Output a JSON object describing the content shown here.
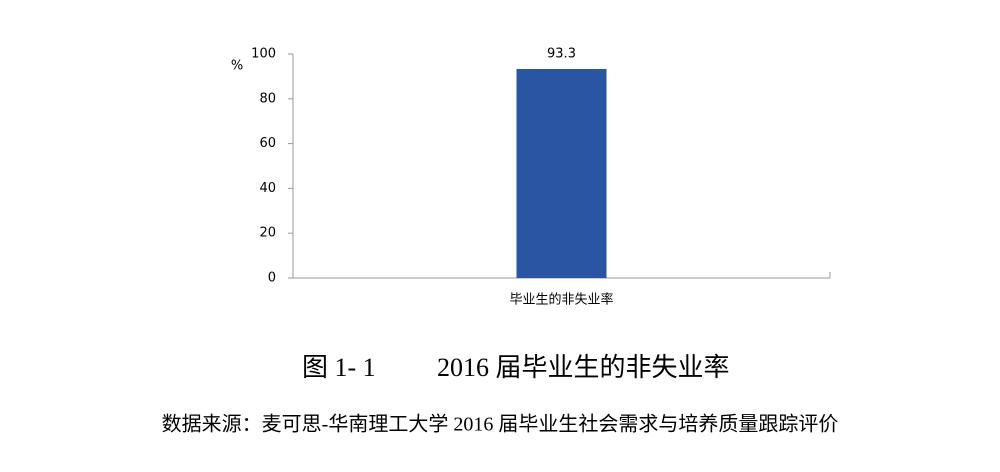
{
  "chart_data": {
    "type": "bar",
    "y_label": "%",
    "categories": [
      "毕业生的非失业率"
    ],
    "values": [
      93.3
    ],
    "color": "#2a55a2",
    "ylim": [
      0,
      100
    ],
    "yticks": [
      0,
      20,
      40,
      60,
      80,
      100
    ],
    "grid": false,
    "figure_label": "图 1- 1",
    "title": "2016 届毕业生的非失业率",
    "source": "数据来源：麦可思-华南理工大学 2016 届毕业生社会需求与培养质量跟踪评价"
  }
}
